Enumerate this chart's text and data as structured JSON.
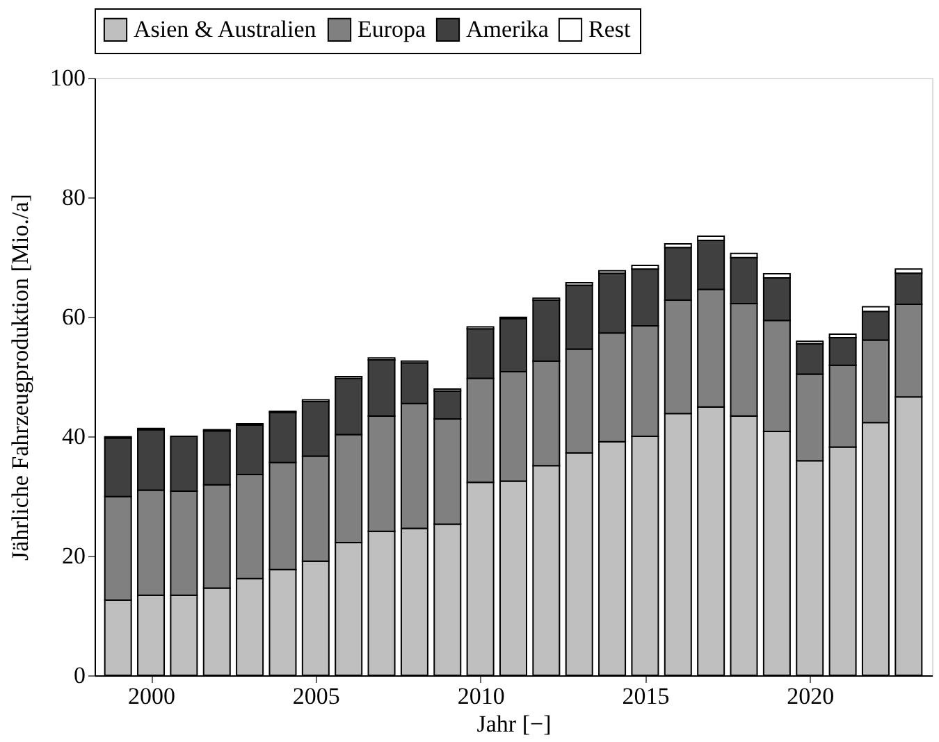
{
  "chart_data": {
    "type": "bar",
    "stacked": true,
    "xlabel": "Jahr [−]",
    "ylabel": "Jährliche Fahrzeugproduktion [Mio./a]",
    "x": [
      1999,
      2000,
      2001,
      2002,
      2003,
      2004,
      2005,
      2006,
      2007,
      2008,
      2009,
      2010,
      2011,
      2012,
      2013,
      2014,
      2015,
      2016,
      2017,
      2018,
      2019,
      2020,
      2021,
      2022,
      2023
    ],
    "series": [
      {
        "name": "Asien & Australien",
        "color": "#bfbfbf",
        "values": [
          12.6,
          13.4,
          13.4,
          14.6,
          16.2,
          17.7,
          19.1,
          22.2,
          24.1,
          24.6,
          25.3,
          32.3,
          32.5,
          35.1,
          37.2,
          39.1,
          40.0,
          43.8,
          44.9,
          43.4,
          40.8,
          35.9,
          38.2,
          42.3,
          46.6
        ]
      },
      {
        "name": "Europa",
        "color": "#808080",
        "values": [
          17.3,
          17.6,
          17.4,
          17.3,
          17.4,
          17.9,
          17.6,
          18.1,
          19.3,
          20.9,
          17.6,
          17.4,
          18.3,
          17.5,
          17.4,
          18.2,
          18.5,
          19.0,
          19.7,
          18.8,
          18.6,
          14.5,
          13.7,
          13.8,
          15.5
        ]
      },
      {
        "name": "Amerika",
        "color": "#404040",
        "values": [
          9.8,
          10.1,
          9.2,
          9.0,
          8.3,
          8.4,
          9.1,
          9.4,
          9.4,
          6.8,
          4.7,
          8.3,
          8.9,
          10.2,
          10.7,
          10.0,
          9.5,
          8.8,
          8.2,
          7.7,
          7.1,
          5.1,
          4.6,
          4.8,
          5.2
        ]
      },
      {
        "name": "Rest",
        "color": "#ffffff",
        "values": [
          0.2,
          0.2,
          null,
          0.2,
          0.2,
          0.2,
          0.3,
          0.3,
          0.3,
          0.3,
          0.3,
          0.3,
          0.2,
          0.3,
          0.4,
          0.4,
          0.6,
          0.6,
          0.7,
          0.7,
          0.7,
          0.4,
          0.6,
          0.8,
          0.7
        ]
      }
    ],
    "xlim": [
      1998.5,
      2023.5
    ],
    "xticks": [
      2000,
      2005,
      2010,
      2015,
      2020
    ],
    "ylim": [
      0,
      100
    ],
    "yticks": [
      0,
      20,
      40,
      60,
      80,
      100
    ],
    "grid": false,
    "legend": "top"
  }
}
